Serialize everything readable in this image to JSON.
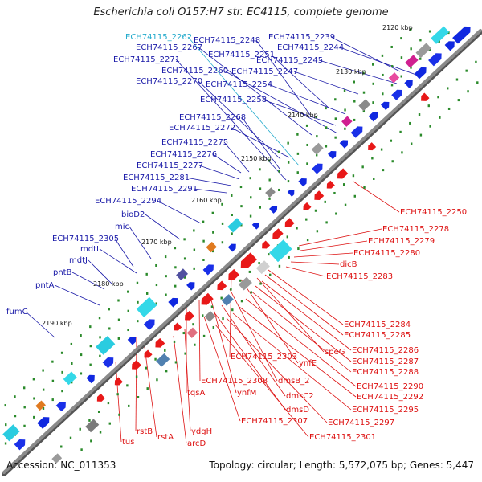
{
  "title": "Escherichia coli O157:H7 str. EC4115, complete genome",
  "footer": {
    "accession": "Accession: NC_011353",
    "summary": "Topology: circular; Length: 5,572,075 bp; Genes: 5,447"
  },
  "kbp_ticks": [
    "2120 kbp",
    "2130 kbp",
    "2140 kbp",
    "2150 kbp",
    "2160 kbp",
    "2170 kbp",
    "2180 kbp",
    "2190 kbp"
  ],
  "colors": {
    "blue_label": "#1a1aa8",
    "cyan_label": "#22aacc",
    "red_label": "#dd1111",
    "backbone": "#8a8a8a"
  },
  "left_labels": [
    {
      "text": "ECH74115_2262",
      "color": "cyan"
    },
    {
      "text": "ECH74115_2248",
      "color": "blue"
    },
    {
      "text": "ECH74115_2239",
      "color": "blue"
    },
    {
      "text": "ECH74115_2267",
      "color": "blue"
    },
    {
      "text": "ECH74115_2251",
      "color": "blue"
    },
    {
      "text": "ECH74115_2244",
      "color": "blue"
    },
    {
      "text": "ECH74115_2271",
      "color": "blue"
    },
    {
      "text": "ECH74115_2245",
      "color": "blue"
    },
    {
      "text": "ECH74115_2260",
      "color": "blue"
    },
    {
      "text": "ECH74115_2247",
      "color": "blue"
    },
    {
      "text": "ECH74115_2270",
      "color": "blue"
    },
    {
      "text": "ECH74115_2254",
      "color": "blue"
    },
    {
      "text": "ECH74115_2258",
      "color": "blue"
    },
    {
      "text": "ECH74115_2268",
      "color": "blue"
    },
    {
      "text": "ECH74115_2272",
      "color": "blue"
    },
    {
      "text": "ECH74115_2275",
      "color": "blue"
    },
    {
      "text": "ECH74115_2276",
      "color": "blue"
    },
    {
      "text": "ECH74115_2277",
      "color": "blue"
    },
    {
      "text": "ECH74115_2281",
      "color": "blue"
    },
    {
      "text": "ECH74115_2291",
      "color": "blue"
    },
    {
      "text": "ECH74115_2294",
      "color": "blue"
    },
    {
      "text": "bioD2",
      "color": "blue"
    },
    {
      "text": "mic",
      "color": "blue"
    },
    {
      "text": "ECH74115_2305",
      "color": "blue"
    },
    {
      "text": "mdtI",
      "color": "blue"
    },
    {
      "text": "mdtJ",
      "color": "blue"
    },
    {
      "text": "pntB",
      "color": "blue"
    },
    {
      "text": "pntA",
      "color": "blue"
    },
    {
      "text": "fumC",
      "color": "blue"
    }
  ],
  "right_labels": [
    {
      "text": "ECH74115_2250"
    },
    {
      "text": "ECH74115_2278"
    },
    {
      "text": "ECH74115_2279"
    },
    {
      "text": "ECH74115_2280"
    },
    {
      "text": "dicB"
    },
    {
      "text": "ECH74115_2283"
    },
    {
      "text": "ECH74115_2284"
    },
    {
      "text": "ECH74115_2285"
    },
    {
      "text": "ECH74115_2286"
    },
    {
      "text": "speG"
    },
    {
      "text": "ECH74115_2287"
    },
    {
      "text": "ECH74115_2303"
    },
    {
      "text": "ynfE"
    },
    {
      "text": "ECH74115_2288"
    },
    {
      "text": "dmsB_2"
    },
    {
      "text": "ECH74115_2308"
    },
    {
      "text": "ynfM"
    },
    {
      "text": "ECH74115_2290"
    },
    {
      "text": "tqsA"
    },
    {
      "text": "dmsC2"
    },
    {
      "text": "ECH74115_2292"
    },
    {
      "text": "dmsD"
    },
    {
      "text": "ECH74115_2295"
    },
    {
      "text": "ECH74115_2307"
    },
    {
      "text": "ECH74115_2297"
    },
    {
      "text": "rstB"
    },
    {
      "text": "ydgH"
    },
    {
      "text": "rstA"
    },
    {
      "text": "tus"
    },
    {
      "text": "arcD"
    },
    {
      "text": "ECH74115_2301"
    }
  ]
}
